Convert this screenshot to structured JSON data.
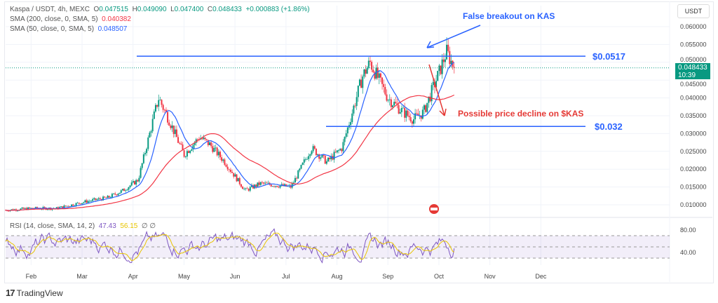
{
  "legend": {
    "symbol": "Kaspa / USDT, 4h, MEXC",
    "o_label": "O",
    "o": "0.047515",
    "h_label": "H",
    "h": "0.049090",
    "l_label": "L",
    "l": "0.047400",
    "c_label": "C",
    "c": "0.048433",
    "change": "+0.000883 (+1.86%)",
    "sma200_label": "SMA (200, close, 0, SMA, 5)",
    "sma200": "0.040382",
    "sma50_label": "SMA (50, close, 0, SMA, 5)",
    "sma50": "0.048507",
    "rsi_label": "RSI (14, close, SMA, 14, 2)",
    "rsi": "47.43",
    "rsi_ma": "56.15",
    "rsi_extra": "∅ ∅"
  },
  "currency": "USDT",
  "last_price": "0.048433",
  "countdown": "10:39",
  "annotations": {
    "false_breakout": "False breakout on KAS",
    "decline": "Possible price decline on $KAS",
    "resistance": "$0.0517",
    "support": "$0.032"
  },
  "brand": "TradingView",
  "colors": {
    "up": "#089981",
    "down": "#f23645",
    "sma50": "#2962ff",
    "sma200": "#f23645",
    "annot_blue": "#2962ff",
    "annot_red": "#e53935",
    "rsi": "#7e57c2",
    "rsi_ma": "#e8c400"
  },
  "chart_data": {
    "type": "line",
    "title": "Kaspa / USDT, 4h, MEXC",
    "x_ticks": [
      "Feb",
      "Mar",
      "Apr",
      "May",
      "Jun",
      "Jul",
      "Aug",
      "Sep",
      "Oct",
      "Nov",
      "Dec"
    ],
    "y_ticks": [
      "0.060000",
      "0.055000",
      "0.050000",
      "0.045000",
      "0.040000",
      "0.035000",
      "0.030000",
      "0.025000",
      "0.020000",
      "0.015000",
      "0.010000"
    ],
    "ylim": [
      0.008,
      0.062
    ],
    "rsi_ticks": [
      "80.00",
      "40.00"
    ],
    "rsi_levels": [
      70,
      50,
      30
    ],
    "x_months": [
      0,
      0.5,
      1,
      1.6,
      2,
      2.3,
      2.6,
      3,
      3.2,
      3.5,
      3.8,
      4,
      4.3,
      4.7,
      5,
      5.6,
      6,
      6.3,
      6.6,
      7,
      7.15,
      7.5,
      7.8,
      8,
      8.2,
      8.5,
      8.65,
      8.8
    ],
    "close_approx": [
      0.0085,
      0.009,
      0.009,
      0.011,
      0.012,
      0.014,
      0.017,
      0.04,
      0.034,
      0.024,
      0.029,
      0.027,
      0.022,
      0.014,
      0.016,
      0.015,
      0.026,
      0.022,
      0.026,
      0.046,
      0.05,
      0.04,
      0.036,
      0.034,
      0.036,
      0.047,
      0.053,
      0.0484
    ],
    "horizontal_levels": [
      0.0517,
      0.032
    ]
  }
}
